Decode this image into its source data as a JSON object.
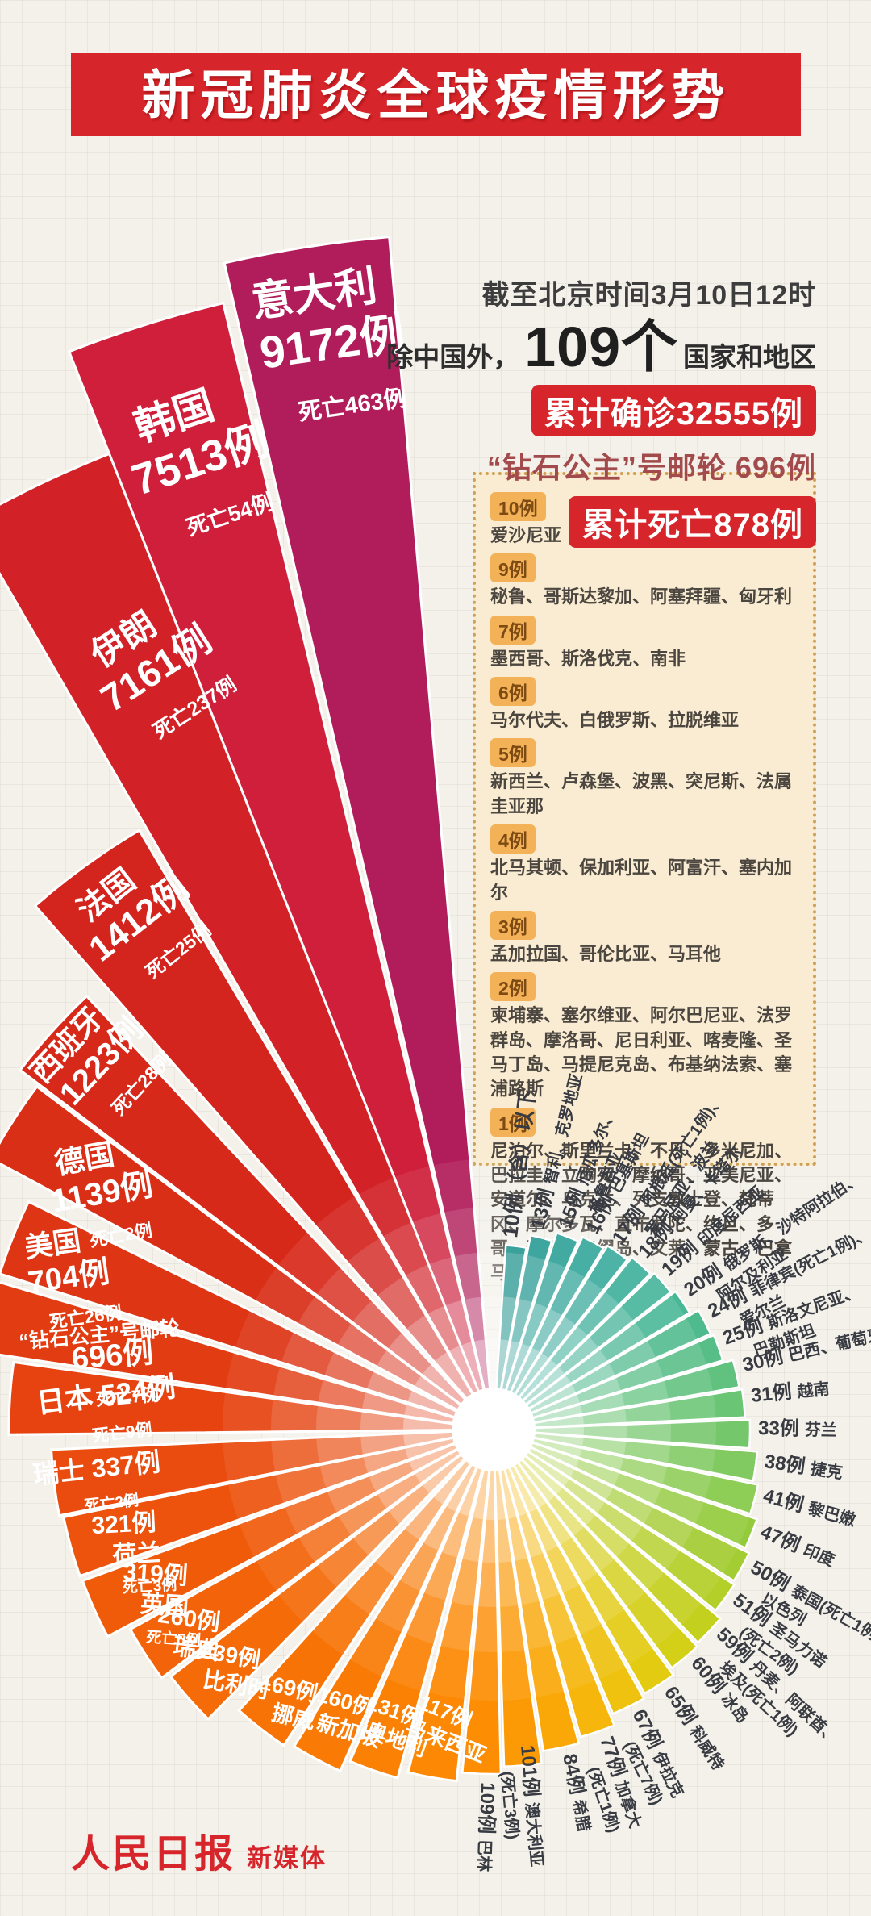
{
  "page": {
    "title": "新冠肺炎全球疫情形势"
  },
  "header": {
    "as_of": "截至北京时间3月10日12时",
    "scope_prefix": "除中国外，",
    "country_count": "109个",
    "scope_suffix": "国家和地区",
    "confirmed_badge": "累计确诊32555例",
    "cruise_line": "“钻石公主”号邮轮 696例",
    "deaths_badge": "累计死亡878例"
  },
  "legend_box": {
    "sections": [
      {
        "badge": "10例",
        "names": "爱沙尼亚"
      },
      {
        "badge": "9例",
        "names": "秘鲁、哥斯达黎加、阿塞拜疆、匈牙利"
      },
      {
        "badge": "7例",
        "names": "墨西哥、斯洛伐克、南非"
      },
      {
        "badge": "6例",
        "names": "马尔代夫、白俄罗斯、拉脱维亚"
      },
      {
        "badge": "5例",
        "names": "新西兰、卢森堡、波黑、突尼斯、法属圭亚那"
      },
      {
        "badge": "4例",
        "names": "北马其顿、保加利亚、阿富汗、塞内加尔"
      },
      {
        "badge": "3例",
        "names": "孟加拉国、哥伦比亚、马耳他"
      },
      {
        "badge": "2例",
        "names": "柬埔寨、塞尔维亚、阿尔巴尼亚、法罗群岛、摩洛哥、尼日利亚、喀麦隆、圣马丁岛、马提尼克岛、布基纳法索、塞浦路斯"
      },
      {
        "badge": "1例",
        "names": "尼泊尔、斯里兰卡、不丹、多米尼加、巴拉圭、立陶宛、摩纳哥、亚美尼亚、安道尔、乌克兰、列支敦士登、梵蒂冈、摩尔多瓦、直布罗陀、约旦、多哥、圣巴托洛缪岛、文莱、蒙古、巴拿马"
      }
    ]
  },
  "chart_data": {
    "type": "radial-fan",
    "title": "新冠肺炎全球疫情形势",
    "unit": "例",
    "note": "wedge length ~ cumulative confirmed cases per country/region, as of 2020-03-10 12:00 Beijing time",
    "layout": {
      "center": [
        612,
        1772
      ],
      "hole_radius": 52,
      "rings": [
        [
          336,
          0.08
        ],
        [
          276,
          0.12
        ],
        [
          220,
          0.17
        ],
        [
          165,
          0.24
        ],
        [
          112,
          0.32
        ]
      ]
    },
    "major": [
      {
        "name": "马来西亚",
        "cases": 117,
        "deaths": null,
        "a": 190.0,
        "hw": 4.0,
        "r": 438,
        "lr": 364,
        "rot": 22,
        "color": "#fc8803",
        "lines": [
          [
            "117例",
            26
          ],
          [
            "马来西亚",
            26
          ]
        ]
      },
      {
        "name": "奥地利",
        "cases": 131,
        "deaths": null,
        "a": 199.4,
        "hw": 4.0,
        "r": 448,
        "lr": 378,
        "rot": 19,
        "color": "#fb8104",
        "lines": [
          [
            "131例",
            26
          ],
          [
            "奥地利",
            26
          ]
        ]
      },
      {
        "name": "新加坡",
        "cases": 160,
        "deaths": null,
        "a": 208.2,
        "hw": 4.0,
        "r": 464,
        "lr": 393,
        "rot": 16,
        "color": "#f97a05",
        "lines": [
          [
            "160例",
            27
          ],
          [
            "新加坡",
            27
          ]
        ]
      },
      {
        "name": "挪威",
        "cases": 169,
        "deaths": null,
        "a": 217.9,
        "hw": 4.3,
        "r": 470,
        "lr": 417,
        "rot": 13,
        "color": "#f77306",
        "lines": [
          [
            "169例",
            27
          ],
          [
            "挪威",
            27
          ]
        ]
      },
      {
        "name": "比利时",
        "cases": 239,
        "deaths": null,
        "a": 228.6,
        "hw": 4.0,
        "r": 504,
        "lr": 437,
        "rot": 10,
        "color": "#f56b07",
        "lines": [
          [
            "239例",
            28
          ],
          [
            "比利时",
            28
          ]
        ]
      },
      {
        "name": "瑞典",
        "cases": 260,
        "deaths": null,
        "a": 237.2,
        "hw": 4.0,
        "r": 514,
        "lr": 451,
        "rot": 8,
        "color": "#f36309",
        "lines": [
          [
            "260例",
            29
          ],
          [
            "瑞典",
            29
          ]
        ]
      },
      {
        "name": "英国",
        "cases": 319,
        "deaths": 5,
        "a": 245.8,
        "hw": 4.0,
        "r": 543,
        "lr": 461,
        "rot": 4,
        "color": "#f05b0a",
        "lines": [
          [
            "319例",
            30
          ],
          [
            "英国",
            30
          ],
          [
            "死亡5例",
            19
          ]
        ]
      },
      {
        "name": "荷兰",
        "cases": 321,
        "deaths": 3,
        "a": 254.5,
        "hw": 4.0,
        "r": 544,
        "lr": 475,
        "rot": -3,
        "color": "#ed530c",
        "lines": [
          [
            "321例",
            30
          ],
          [
            "荷兰",
            30
          ],
          [
            "死亡3例",
            19
          ]
        ]
      },
      {
        "name": "瑞士",
        "cases": 337,
        "deaths": 2,
        "a": 263.1,
        "hw": 4.3,
        "r": 549,
        "lr": 495,
        "rot": -6,
        "color": "#ea4b0e",
        "lines": [
          [
            "瑞士 337例",
            32
          ],
          [
            "死亡2例",
            19
          ]
        ]
      },
      {
        "name": "日本",
        "cases": 524,
        "deaths": 9,
        "a": 273.7,
        "hw": 4.3,
        "r": 601,
        "lr": 480,
        "rot": -7,
        "color": "#e64310",
        "lines": [
          [
            "日本 524例",
            35
          ],
          [
            "死亡9例",
            21
          ]
        ]
      },
      {
        "name": "“钻石公主”号邮轮",
        "cases": 696,
        "deaths": 7,
        "a": 282.6,
        "hw": 4.0,
        "r": 640,
        "lr": 500,
        "rot": -5,
        "color": "#e23c12",
        "lines": [
          [
            "“钻石公主”号邮轮",
            25
          ],
          [
            "696例",
            38
          ],
          [
            "死亡7例",
            22
          ]
        ]
      },
      {
        "name": "美国",
        "cases": 704,
        "deaths": 26,
        "a": 291.8,
        "hw": 4.3,
        "r": 642,
        "lr": 587,
        "rot": -8,
        "color": "#de3514",
        "lines": [
          [
            "美国",
            35
          ],
          [
            "704例",
            38
          ],
          [
            "死亡26例",
            22
          ]
        ]
      },
      {
        "name": "德国",
        "cases": 1139,
        "deaths": 2,
        "a": 302.6,
        "hw": 4.3,
        "r": 708,
        "lr": 600,
        "rot": -10,
        "color": "#da2f17",
        "lines": [
          [
            "德国",
            37
          ],
          [
            "1139例",
            40
          ],
          [
            "死亡2例",
            22
          ]
        ]
      },
      {
        "name": "西班牙",
        "cases": 1223,
        "deaths": 28,
        "a": 312.0,
        "hw": 4.8,
        "r": 737,
        "lr": 700,
        "rot": -47,
        "color": "#d7291a",
        "lines": [
          [
            "西班牙",
            37
          ],
          [
            "1223例",
            40
          ],
          [
            "死亡28例",
            23
          ]
        ]
      },
      {
        "name": "法国",
        "cases": 1412,
        "deaths": 25,
        "a": 324.1,
        "hw": 5.3,
        "r": 863,
        "lr": 805,
        "rot": -38,
        "color": "#d4241e",
        "lines": [
          [
            "法国",
            39
          ],
          [
            "1412例",
            44
          ],
          [
            "死亡25例",
            23
          ]
        ]
      },
      {
        "name": "伊朗",
        "cases": 7161,
        "deaths": 237,
        "a": 335.0,
        "hw": 5.0,
        "r": 1300,
        "lr": 1067,
        "rot": -33,
        "color": "#d22127",
        "lines": [
          [
            "伊朗",
            43
          ],
          [
            "7161例",
            47
          ],
          [
            "死亡237例",
            25
          ]
        ]
      },
      {
        "name": "韩国",
        "cases": 7513,
        "deaths": 54,
        "a": 342.5,
        "hw": 4.0,
        "r": 1436,
        "lr": 1300,
        "rot": -18,
        "color": "#cf1f3a",
        "lines": [
          [
            "韩国",
            50
          ],
          [
            "7513例",
            54
          ],
          [
            "死亡54例",
            27
          ]
        ]
      },
      {
        "name": "意大利",
        "cases": 9172,
        "deaths": 463,
        "a": 351.0,
        "hw": 4.0,
        "r": 1484,
        "lr": 1407,
        "rot": -8,
        "color": "#b11d5a",
        "lines": [
          [
            "意大利",
            52
          ],
          [
            "9172例",
            56
          ],
          [
            "死亡463例",
            29
          ]
        ]
      }
    ],
    "minor": [
      {
        "label": "10例（含）以下",
        "names": "",
        "names2": null,
        "cases": 10,
        "threshold": true,
        "a": 7,
        "r": 229,
        "color": "#0e8b84"
      },
      {
        "label": "13例",
        "names": "智利、克罗地亚",
        "names2": null,
        "cases": 13,
        "a": 14,
        "r": 245,
        "color": "#139189"
      },
      {
        "label": "15例",
        "names": "厄瓜多尔、",
        "names2": "格鲁吉亚",
        "cases": 15,
        "a": 21,
        "r": 256,
        "color": "#18978d"
      },
      {
        "label": "16例",
        "names": "巴基斯坦",
        "names2": null,
        "cases": 16,
        "a": 28,
        "r": 263,
        "color": "#1e9d90"
      },
      {
        "label": "17例",
        "names": "阿根廷(死亡1例)、",
        "names2": "罗马尼亚、波兰",
        "cases": 17,
        "a": 35,
        "r": 268,
        "color": "#24a292"
      },
      {
        "label": "18例",
        "names": "阿曼、卡塔尔",
        "names2": null,
        "cases": 18,
        "a": 42,
        "r": 274,
        "color": "#2aa791"
      },
      {
        "label": "19例",
        "names": "印度尼西亚",
        "names2": null,
        "cases": 19,
        "a": 49,
        "r": 278,
        "color": "#31ac8f"
      },
      {
        "label": "20例",
        "names": "俄罗斯、沙特阿拉伯、",
        "names2": "阿尔及利亚",
        "cases": 20,
        "a": 56,
        "r": 283,
        "color": "#38b18b"
      },
      {
        "label": "24例",
        "names": "菲律宾(死亡1例)、",
        "names2": "爱尔兰",
        "cases": 24,
        "a": 63,
        "r": 294,
        "color": "#40b584"
      },
      {
        "label": "25例",
        "names": "斯洛文尼亚、",
        "names2": "巴勒斯坦",
        "cases": 25,
        "a": 70,
        "r": 297,
        "color": "#49b97d"
      },
      {
        "label": "30例",
        "names": "巴西、葡萄牙",
        "names2": null,
        "cases": 30,
        "a": 77,
        "r": 309,
        "color": "#53bd74"
      },
      {
        "label": "31例",
        "names": "越南",
        "names2": null,
        "cases": 31,
        "a": 84,
        "r": 312,
        "color": "#5ec06a"
      },
      {
        "label": "33例",
        "names": "芬兰",
        "names2": null,
        "cases": 33,
        "a": 91,
        "r": 318,
        "color": "#6ac360"
      },
      {
        "label": "38例",
        "names": "捷克",
        "names2": null,
        "cases": 38,
        "a": 98,
        "r": 328,
        "color": "#77c654"
      },
      {
        "label": "41例",
        "names": "黎巴嫩",
        "names2": null,
        "cases": 41,
        "a": 105,
        "r": 335,
        "color": "#85c948"
      },
      {
        "label": "47例",
        "names": "印度",
        "names2": null,
        "cases": 47,
        "a": 112,
        "r": 345,
        "color": "#93cb3d"
      },
      {
        "label": "50例",
        "names": "泰国(死亡1例)、",
        "names2": "以色列",
        "cases": 50,
        "a": 119,
        "r": 352,
        "color": "#a3cd32"
      },
      {
        "label": "51例",
        "names": "圣马力诺",
        "names2": "(死亡2例)",
        "cases": 51,
        "a": 126,
        "r": 355,
        "color": "#b3cf28"
      },
      {
        "label": "59例",
        "names": "丹麦、阿联酋、",
        "names2": "埃及(死亡1例)",
        "cases": 59,
        "a": 133,
        "r": 366,
        "color": "#c4d01e"
      },
      {
        "label": "60例",
        "names": "冰岛",
        "names2": null,
        "cases": 60,
        "a": 140,
        "r": 369,
        "color": "#d4cf17"
      },
      {
        "label": "65例",
        "names": "科威特",
        "names2": null,
        "cases": 65,
        "a": 147,
        "r": 377,
        "color": "#e3cb12"
      },
      {
        "label": "67例",
        "names": "伊拉克",
        "names2": "(死亡7例)",
        "cases": 67,
        "a": 154,
        "r": 382,
        "color": "#eec20f"
      },
      {
        "label": "77例",
        "names": "加拿大",
        "names2": "(死亡1例)",
        "cases": 77,
        "a": 161,
        "r": 396,
        "color": "#f6b60b"
      },
      {
        "label": "84例",
        "names": "希腊",
        "names2": null,
        "cases": 84,
        "a": 168,
        "r": 403,
        "color": "#faa808"
      },
      {
        "label": "101例",
        "names": "澳大利亚",
        "names2": "(死亡3例)",
        "cases": 101,
        "a": 175,
        "r": 418,
        "dr": -25,
        "color": "#fc9a05"
      },
      {
        "label": "109例",
        "names": "巴林",
        "names2": null,
        "cases": 109,
        "a": 182,
        "r": 427,
        "color": "#fd8e03"
      }
    ]
  },
  "footer": {
    "brand": "人民日报",
    "sub": "新媒体"
  }
}
